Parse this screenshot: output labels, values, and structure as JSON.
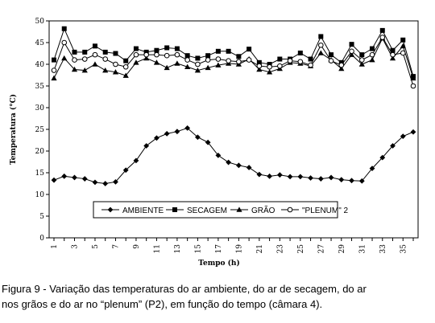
{
  "chart_data": {
    "type": "line",
    "title": "",
    "xlabel": "Tempo (h)",
    "ylabel": "Temperatura (°C)",
    "ylim": [
      0,
      50
    ],
    "yticks": [
      0,
      5,
      10,
      15,
      20,
      25,
      30,
      35,
      40,
      45,
      50
    ],
    "xlim": [
      1,
      36
    ],
    "xticks": [
      1,
      3,
      5,
      7,
      9,
      11,
      13,
      15,
      17,
      19,
      21,
      23,
      25,
      27,
      29,
      31,
      33,
      35
    ],
    "x": [
      1,
      2,
      3,
      4,
      5,
      6,
      7,
      8,
      9,
      10,
      11,
      12,
      13,
      14,
      15,
      16,
      17,
      18,
      19,
      20,
      21,
      22,
      23,
      24,
      25,
      26,
      27,
      28,
      29,
      30,
      31,
      32,
      33,
      34,
      35,
      36
    ],
    "grid": false,
    "legend_position": "inside-bottom",
    "series": [
      {
        "name": "AMBIENTE",
        "marker": "diamond",
        "values": [
          13.3,
          14.2,
          13.9,
          13.6,
          12.8,
          12.5,
          12.9,
          15.6,
          17.8,
          21.2,
          23.0,
          24.0,
          24.5,
          25.3,
          23.2,
          22.0,
          19.0,
          17.4,
          16.7,
          16.2,
          14.6,
          14.2,
          14.5,
          14.1,
          14.1,
          13.8,
          13.6,
          13.9,
          13.4,
          13.2,
          13.1,
          16.0,
          18.5,
          21.2,
          23.4,
          24.4
        ]
      },
      {
        "name": "SECAGEM",
        "marker": "square",
        "values": [
          41.0,
          48.2,
          42.8,
          42.8,
          44.2,
          42.8,
          42.5,
          40.8,
          43.6,
          42.8,
          43.2,
          43.8,
          43.6,
          42.0,
          41.4,
          42.0,
          43.0,
          43.0,
          41.8,
          43.5,
          40.4,
          40.0,
          41.2,
          41.2,
          42.6,
          41.2,
          46.4,
          42.2,
          40.4,
          44.6,
          42.2,
          43.6,
          47.8,
          43.2,
          45.6,
          37.2
        ]
      },
      {
        "name": "GRÃO",
        "marker": "triangle",
        "values": [
          36.8,
          41.4,
          38.8,
          38.6,
          40.0,
          38.6,
          38.2,
          37.4,
          40.4,
          41.4,
          40.4,
          39.2,
          40.2,
          39.4,
          38.6,
          39.2,
          39.8,
          40.2,
          40.0,
          41.2,
          38.8,
          38.2,
          39.0,
          40.4,
          40.2,
          39.6,
          42.6,
          41.0,
          39.0,
          42.2,
          40.0,
          41.0,
          46.0,
          41.4,
          44.2,
          36.8
        ]
      },
      {
        "name": "\"PLENUM\" 2",
        "marker": "circle",
        "values": [
          38.6,
          45.0,
          41.0,
          41.2,
          42.2,
          41.2,
          40.0,
          39.4,
          42.2,
          42.2,
          42.2,
          42.0,
          42.2,
          41.0,
          40.0,
          41.0,
          41.2,
          40.8,
          40.6,
          41.0,
          39.6,
          39.4,
          39.6,
          40.8,
          40.6,
          39.8,
          44.4,
          40.8,
          39.8,
          43.0,
          41.0,
          42.2,
          46.2,
          42.2,
          42.6,
          35.0
        ]
      }
    ]
  },
  "caption": {
    "line1": "Figura 9 - Variação das temperaturas do ar ambiente, do ar de secagem, do ar",
    "line2": "nos grãos e do ar no “plenum” (P2), em função do tempo (câmara 4)."
  }
}
